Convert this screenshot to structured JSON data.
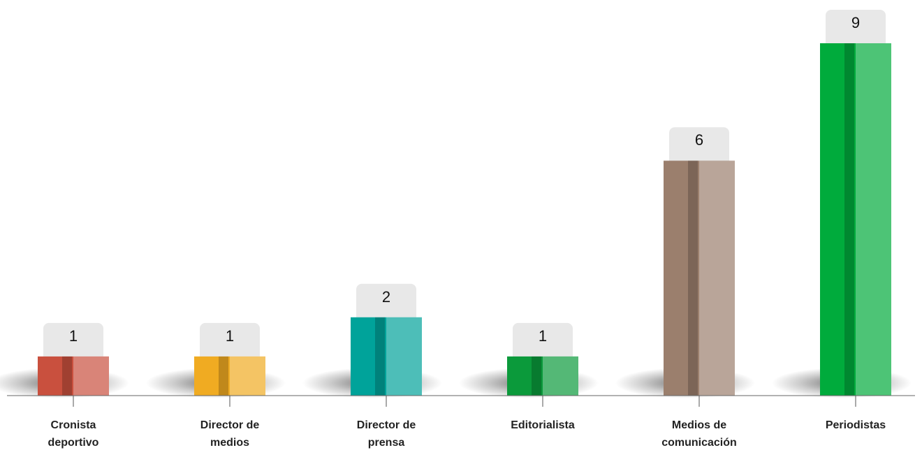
{
  "chart_data": {
    "type": "bar",
    "categories": [
      "Cronista deportivo",
      "Director de medios",
      "Director de prensa",
      "Editorialista",
      "Medios de comunicación",
      "Periodistas"
    ],
    "values": [
      1,
      1,
      2,
      1,
      6,
      9
    ],
    "colors": [
      "#c9503e",
      "#f0ab22",
      "#00a39a",
      "#0b9a3b",
      "#9b7f6d",
      "#00ab3c"
    ]
  }
}
